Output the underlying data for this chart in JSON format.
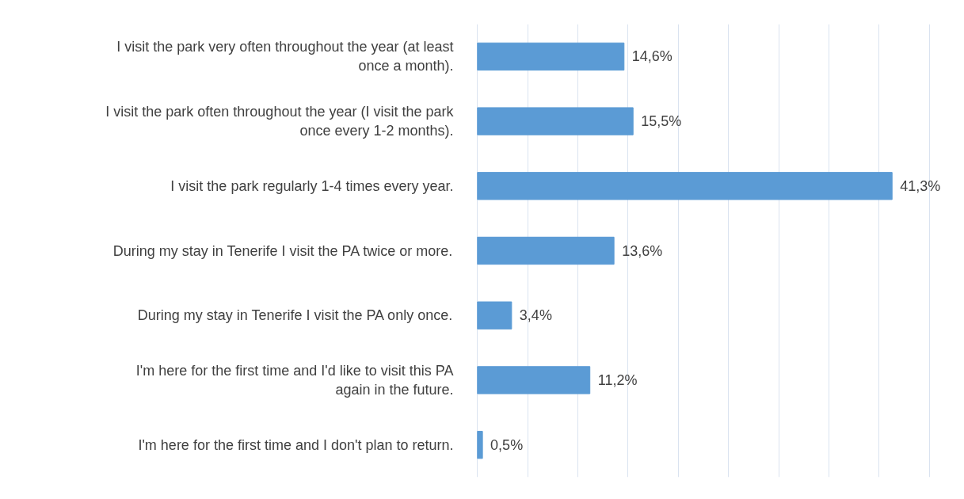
{
  "chart_data": {
    "type": "bar",
    "orientation": "horizontal",
    "categories": [
      "I visit the park very often throughout the year (at least once a month).",
      "I visit the park often throughout the year (I visit the park once every 1-2 months).",
      "I visit the park regularly 1-4 times every year.",
      "During my stay in Tenerife I visit the PA twice or more.",
      "During my stay in Tenerife I visit the PA only once.",
      "I'm here for the first time and I'd like to visit this PA again in the future.",
      "I'm here for the first time and I don't plan to return."
    ],
    "values": [
      14.6,
      15.5,
      41.3,
      13.6,
      3.4,
      11.2,
      0.5
    ],
    "value_labels": [
      "14,6%",
      "15,5%",
      "41,3%",
      "13,6%",
      "3,4%",
      "11,2%",
      "0,5%"
    ],
    "color": "#5b9bd5",
    "xticks": [
      {
        "value": 0,
        "label": null
      },
      {
        "value": 5,
        "label": null
      },
      {
        "value": 10,
        "label": null
      },
      {
        "value": 15,
        "label": null
      },
      {
        "value": 20,
        "label": null
      },
      {
        "value": 25,
        "label": null
      },
      {
        "value": 30,
        "label": null
      },
      {
        "value": 35,
        "label": null
      },
      {
        "value": 40,
        "label": null
      },
      {
        "value": 45,
        "label": null
      }
    ],
    "grid": "x",
    "tick_labels": "y"
  }
}
